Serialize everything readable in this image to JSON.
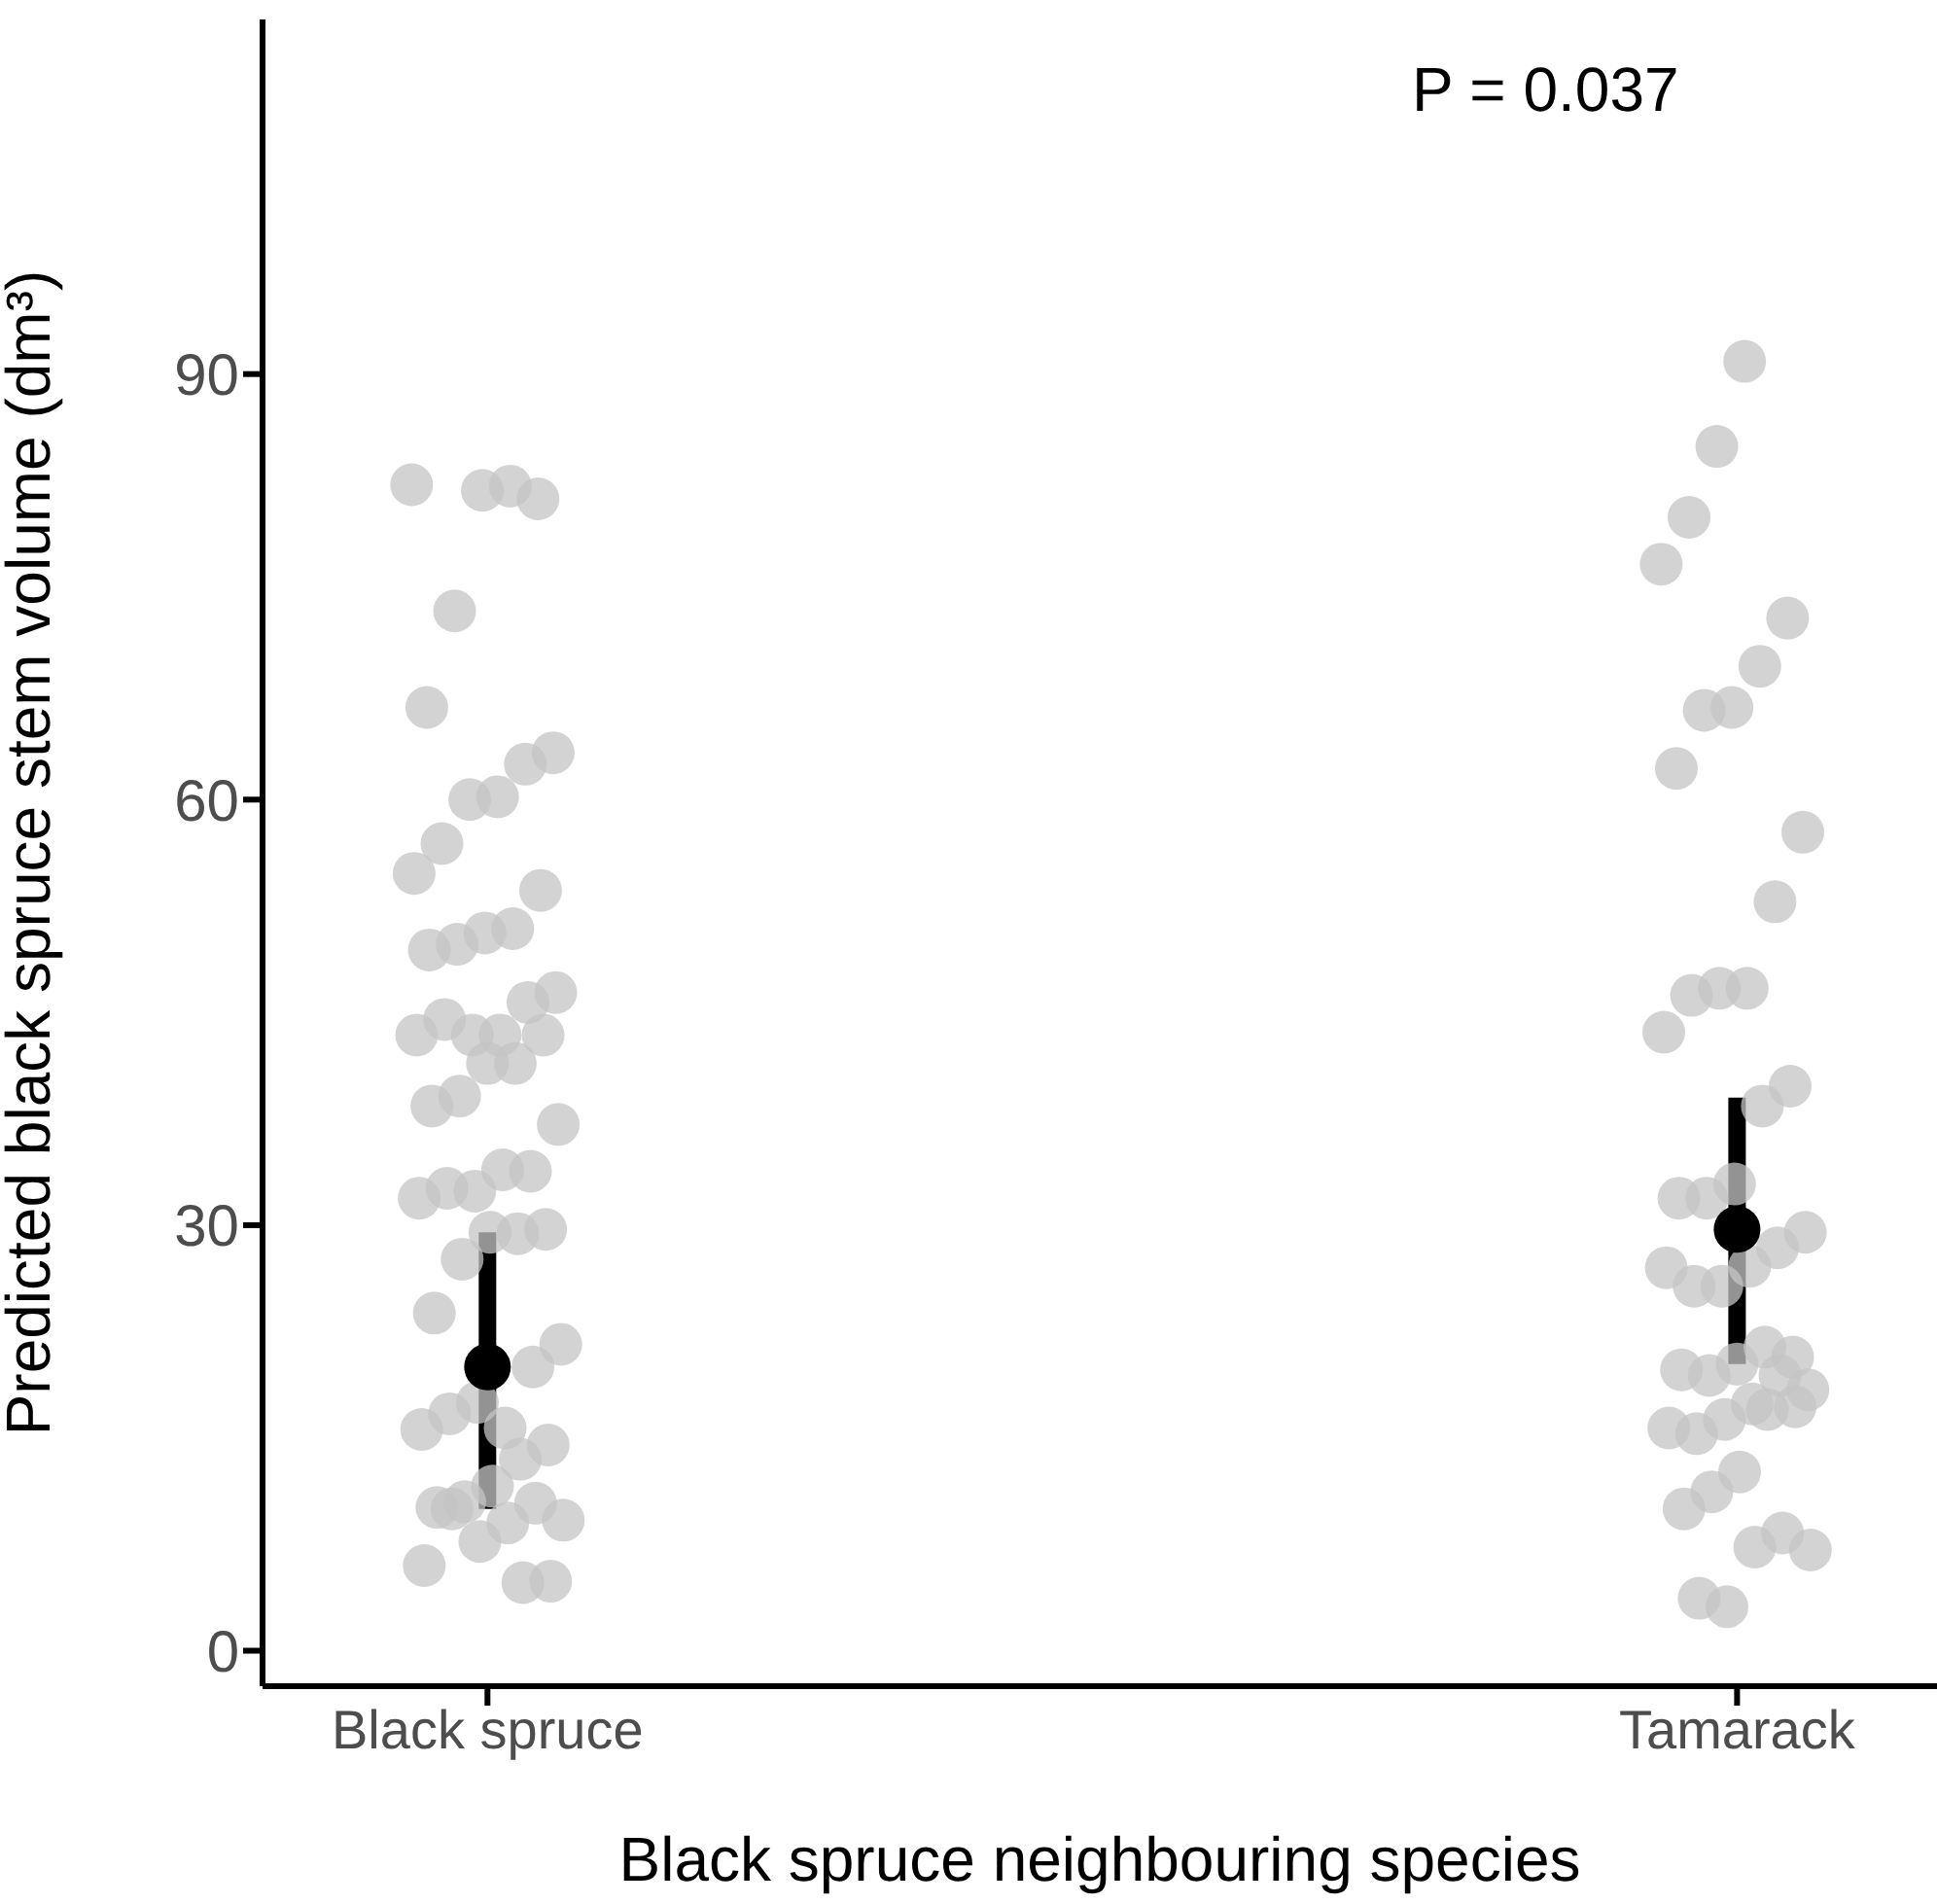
{
  "chart_data": {
    "type": "scatter",
    "xlabel": "Black spruce neighbouring species",
    "ylabel": "Predicted black spruce stem volume (dm³)",
    "categories": [
      "Black spruce",
      "Tamarack"
    ],
    "ylim": [
      -2.5,
      115
    ],
    "yticks": [
      0,
      30,
      60,
      90
    ],
    "marker": "circle",
    "annotations": [
      "P = 0.037"
    ],
    "series": [
      {
        "color": "#c4c4c4",
        "x": [
          "Black spruce",
          "Black spruce",
          "Black spruce",
          "Black spruce",
          "Black spruce",
          "Black spruce",
          "Black spruce",
          "Black spruce",
          "Black spruce",
          "Black spruce",
          "Black spruce",
          "Black spruce",
          "Black spruce",
          "Black spruce",
          "Black spruce",
          "Black spruce",
          "Black spruce",
          "Black spruce",
          "Black spruce",
          "Black spruce",
          "Black spruce",
          "Black spruce",
          "Black spruce",
          "Black spruce",
          "Black spruce",
          "Black spruce",
          "Black spruce",
          "Black spruce",
          "Black spruce",
          "Black spruce",
          "Black spruce",
          "Black spruce",
          "Black spruce",
          "Black spruce",
          "Black spruce",
          "Black spruce",
          "Black spruce",
          "Black spruce",
          "Black spruce",
          "Black spruce",
          "Black spruce",
          "Black spruce",
          "Black spruce",
          "Black spruce",
          "Black spruce",
          "Black spruce",
          "Black spruce",
          "Black spruce",
          "Black spruce",
          "Black spruce",
          "Black spruce",
          "Black spruce",
          "Black spruce",
          "Black spruce",
          "Black spruce",
          "Black spruce",
          "Black spruce",
          "Black spruce",
          "Tamarack",
          "Tamarack",
          "Tamarack",
          "Tamarack",
          "Tamarack",
          "Tamarack",
          "Tamarack",
          "Tamarack",
          "Tamarack",
          "Tamarack",
          "Tamarack",
          "Tamarack",
          "Tamarack",
          "Tamarack",
          "Tamarack",
          "Tamarack",
          "Tamarack",
          "Tamarack",
          "Tamarack",
          "Tamarack",
          "Tamarack",
          "Tamarack",
          "Tamarack",
          "Tamarack",
          "Tamarack",
          "Tamarack",
          "Tamarack",
          "Tamarack",
          "Tamarack",
          "Tamarack",
          "Tamarack",
          "Tamarack",
          "Tamarack",
          "Tamarack",
          "Tamarack",
          "Tamarack",
          "Tamarack",
          "Tamarack",
          "Tamarack",
          "Tamarack",
          "Tamarack",
          "Tamarack",
          "Tamarack",
          "Tamarack",
          "Tamarack",
          "Tamarack",
          "Tamarack"
        ],
        "values": [
          82.2,
          81.2,
          82.1,
          81.8,
          73.3,
          66.5,
          63.3,
          62.5,
          60.2,
          60.0,
          56.9,
          54.8,
          53.6,
          50.9,
          50.6,
          49.8,
          49.4,
          46.4,
          45.7,
          43.4,
          43.4,
          44.5,
          43.4,
          43.4,
          41.4,
          41.4,
          39.1,
          38.4,
          37.1,
          33.8,
          33.9,
          32.4,
          32.6,
          31.9,
          29.7,
          29.4,
          29.5,
          27.6,
          23.8,
          21.6,
          20.0,
          15.7,
          17.5,
          16.7,
          15.6,
          14.5,
          13.5,
          11.6,
          10.5,
          10.1,
          9.2,
          10.4,
          9.0,
          7.7,
          10.0,
          6.0,
          4.9,
          4.8,
          90.9,
          84.9,
          79.9,
          76.6,
          72.8,
          69.4,
          66.5,
          66.3,
          62.2,
          57.7,
          52.8,
          46.7,
          46.7,
          46.2,
          43.6,
          39.8,
          38.4,
          32.9,
          31.9,
          31.9,
          29.5,
          28.4,
          27.1,
          25.7,
          25.7,
          27.0,
          20.7,
          21.4,
          20.2,
          19.4,
          19.8,
          18.4,
          19.4,
          17.4,
          16.3,
          15.3,
          15.7,
          17.2,
          17.0,
          12.6,
          11.2,
          10.0,
          7.1,
          8.3,
          7.3,
          3.1,
          3.7
        ]
      },
      {
        "color": "#000000",
        "x": [
          "Black spruce",
          "Tamarack"
        ],
        "values": [
          20,
          29.7
        ],
        "errors": [
          [
            10,
            29.5
          ],
          [
            20.2,
            39
          ]
        ]
      }
    ]
  }
}
